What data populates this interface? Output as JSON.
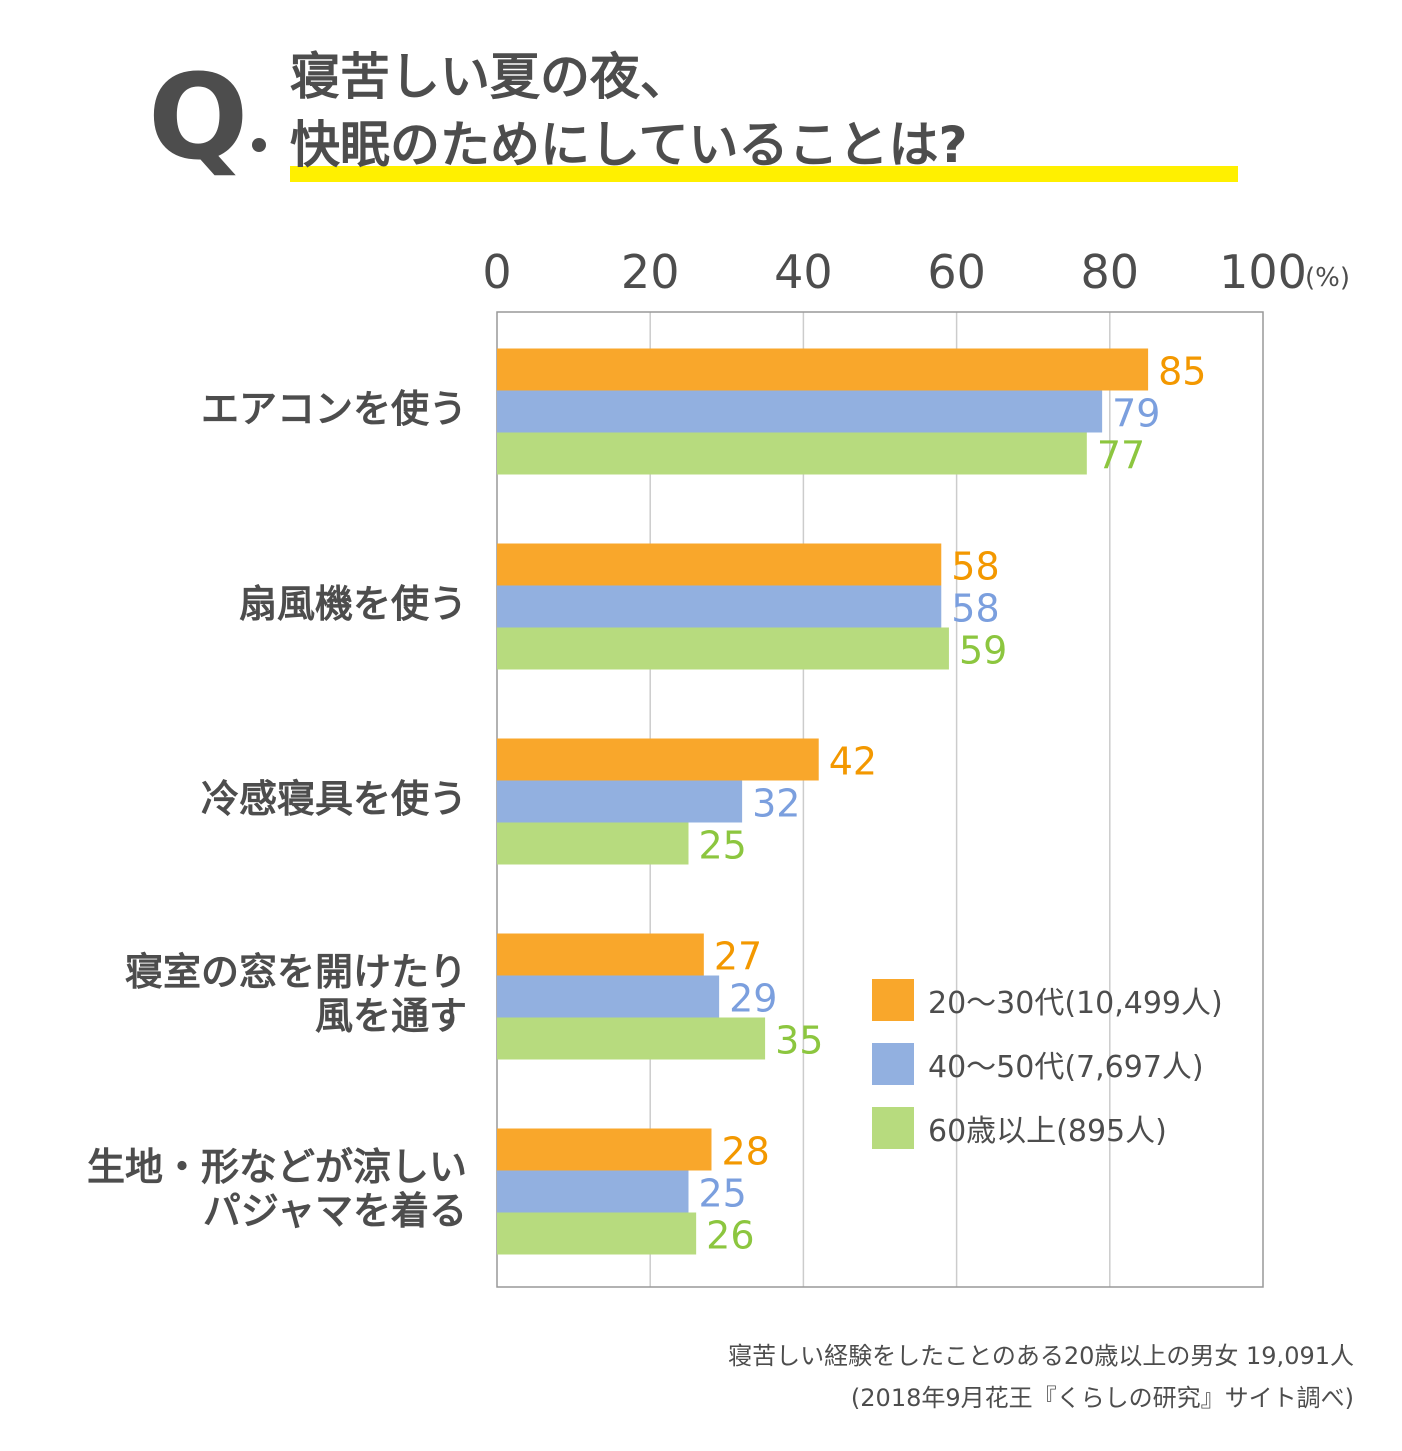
{
  "header": {
    "q_mark": "Q",
    "title_line1": "寝苦しい夏の夜、",
    "title_line2": "快眠のためにしていることは?"
  },
  "colors": {
    "series": [
      "#f9a72b",
      "#92b0e0",
      "#b7db7e"
    ],
    "labels": [
      "#f39800",
      "#7b9fde",
      "#8cc63f"
    ],
    "text": "#4d4d4d",
    "grid": "#cccccc",
    "highlight": "#fff000"
  },
  "chart_data": {
    "type": "bar",
    "orientation": "horizontal",
    "title": "寝苦しい夏の夜、快眠のためにしていることは?",
    "xlabel": "(%)",
    "ylabel": "",
    "xlim": [
      0,
      100
    ],
    "x_ticks": [
      "0",
      "20",
      "40",
      "60",
      "80",
      "100"
    ],
    "x_unit": "(%)",
    "grid": true,
    "legend_position": "bottom-right",
    "categories": [
      [
        "エアコンを使う"
      ],
      [
        "扇風機を使う"
      ],
      [
        "冷感寝具を使う"
      ],
      [
        "寝室の窓を開けたり",
        "風を通す"
      ],
      [
        "生地・形などが涼しい",
        "パジャマを着る"
      ]
    ],
    "series": [
      {
        "name": "20〜30代(10,499人)",
        "values": [
          85,
          58,
          42,
          27,
          28
        ]
      },
      {
        "name": "40〜50代(7,697人)",
        "values": [
          79,
          58,
          32,
          29,
          25
        ]
      },
      {
        "name": "60歳以上(895人)",
        "values": [
          77,
          59,
          25,
          35,
          26
        ]
      }
    ]
  },
  "footnote": {
    "line1": "寝苦しい経験をしたことのある20歳以上の男女 19,091人",
    "line2": "(2018年9月花王『くらしの研究』サイト調べ)"
  }
}
